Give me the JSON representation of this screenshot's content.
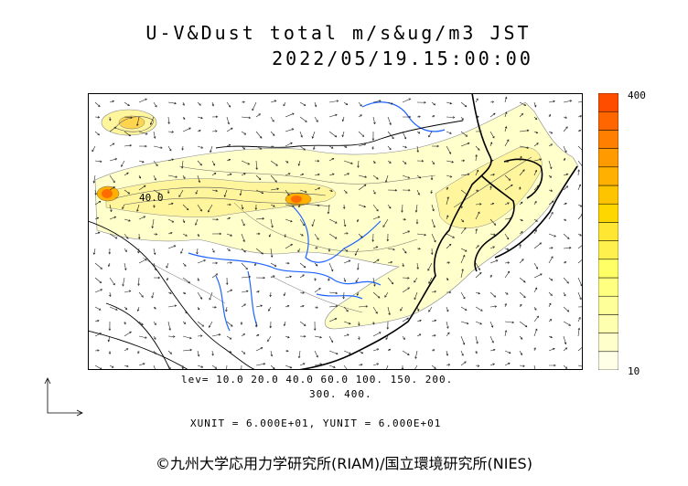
{
  "title_line1": "U-V&Dust total m/s&ug/m3 JST",
  "title_line2": "2022/05/19.15:00:00",
  "colorbar": {
    "max_label": "400",
    "min_label": "10",
    "colors": [
      "#ffffe8",
      "#ffffcc",
      "#ffffb0",
      "#ffff99",
      "#ffff80",
      "#ffff66",
      "#fff04d",
      "#ffe633",
      "#ffd700",
      "#ffc400",
      "#ffb000",
      "#ff9a00",
      "#ff8000",
      "#ff6600",
      "#ff4d00"
    ]
  },
  "map": {
    "contour_label": "40.0",
    "land_color": "#ffffff",
    "dust_light": "#ffffc8",
    "dust_mid": "#fff59d",
    "dust_high": "#ffd54f",
    "dust_peak": "#ff6d00",
    "river_color": "#1e64ff"
  },
  "levels_line1": "lev= 10.0 20.0 40.0 60.0 100. 150. 200.",
  "levels_line2": "300. 400.",
  "unit_line": "XUNIT = 6.000E+01, YUNIT = 6.000E+01",
  "copyright": "©九州大学応用力学研究所(RIAM)/国立環境研究所(NIES)"
}
